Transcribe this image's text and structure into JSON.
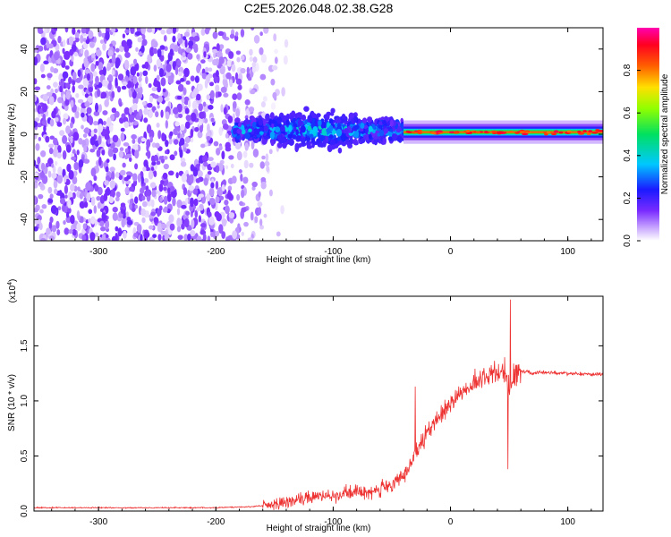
{
  "figure_title": "C2E5.2026.048.02.38.G28",
  "colors": {
    "snr_line": "#ee3333",
    "frame": "#000000",
    "background": "#ffffff"
  },
  "chart_data": [
    {
      "id": "spectrogram",
      "type": "heatmap",
      "title": "C2E5.2026.048.02.38.G28",
      "xlabel": "Height of straight line (km)",
      "ylabel": "Frequency (Hz)",
      "xlim": [
        -355,
        130
      ],
      "ylim": [
        -50,
        50
      ],
      "x_ticks": [
        -300,
        -200,
        -100,
        0,
        100
      ],
      "x_tick_labels": [
        "-300",
        "-200",
        "-100",
        "0",
        "100"
      ],
      "y_ticks": [
        -40,
        -20,
        0,
        20,
        40
      ],
      "y_tick_labels": [
        "-40",
        "-20",
        "0",
        "20",
        "40"
      ],
      "colorbar": {
        "label": "Normalized spectral amplitude",
        "range": [
          0,
          1
        ],
        "ticks": [
          0.0,
          0.2,
          0.4,
          0.6,
          0.8
        ],
        "tick_labels": [
          "0.0",
          "0.2",
          "0.4",
          "0.6",
          "0.8"
        ],
        "colormap": "rainbow (white-purple-blue-cyan-green-yellow-red-magenta)"
      },
      "regions": [
        {
          "desc": "broadband noise",
          "x_range": [
            -355,
            -160
          ],
          "freq_spread_hz": 50,
          "amplitude": 0.1
        },
        {
          "desc": "emerging signal",
          "x_range": [
            -185,
            -40
          ],
          "freq_center_hz": 2,
          "freq_spread_hz": 12,
          "amplitude": 0.25
        },
        {
          "desc": "stable signal",
          "x_range": [
            -40,
            130
          ],
          "freq_center_hz": 1,
          "freq_spread_hz": 3,
          "amplitude": 0.9
        }
      ]
    },
    {
      "id": "snr",
      "type": "line",
      "xlabel": "Height of straight line (km)",
      "ylabel": "SNR (10 * v/v)",
      "y_scale_label": "(x10",
      "y_scale_exponent": "4",
      "xlim": [
        -355,
        130
      ],
      "ylim": [
        0,
        1.95
      ],
      "x_ticks": [
        -300,
        -200,
        -100,
        0,
        100
      ],
      "x_tick_labels": [
        "-300",
        "-200",
        "-100",
        "0",
        "100"
      ],
      "y_ticks": [
        0.0,
        0.5,
        1.0,
        1.5
      ],
      "y_tick_labels": [
        "0.0",
        "0.5",
        "1.0",
        "1.5"
      ],
      "series": [
        {
          "name": "SNR",
          "x": [
            -355,
            -300,
            -250,
            -200,
            -170,
            -150,
            -130,
            -110,
            -90,
            -70,
            -50,
            -40,
            -30,
            -20,
            -10,
            0,
            10,
            20,
            30,
            40,
            45,
            50,
            55,
            60,
            70,
            80,
            100,
            130
          ],
          "y": [
            0.03,
            0.03,
            0.03,
            0.03,
            0.04,
            0.06,
            0.1,
            0.14,
            0.16,
            0.18,
            0.22,
            0.32,
            0.5,
            0.7,
            0.85,
            0.98,
            1.08,
            1.16,
            1.22,
            1.26,
            1.3,
            1.1,
            1.28,
            1.27,
            1.25,
            1.26,
            1.25,
            1.24
          ],
          "spikes": [
            {
              "x": -30,
              "y": 1.13
            },
            {
              "x": 49,
              "y": 0.38
            },
            {
              "x": 51,
              "y": 1.92
            }
          ]
        }
      ]
    }
  ]
}
